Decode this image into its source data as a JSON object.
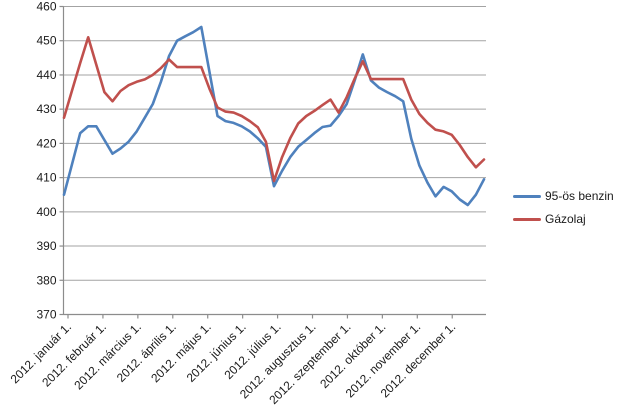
{
  "chart_data": {
    "type": "line",
    "title": "",
    "xlabel": "",
    "ylabel": "",
    "ylim": [
      370,
      460
    ],
    "y_ticks": [
      370,
      380,
      390,
      400,
      410,
      420,
      430,
      440,
      450,
      460
    ],
    "x_tick_labels": [
      "2012. január 1.",
      "2012. február 1.",
      "2012. március 1.",
      "2012. április 1.",
      "2012. május 1.",
      "2012. június 1.",
      "2012. július 1.",
      "2012. augusztus 1.",
      "2012. szeptember 1.",
      "2012. október 1.",
      "2012. november 1.",
      "2012. december 1."
    ],
    "x_unit": "week of 2012",
    "grid": "horizontal",
    "legend_position": "right",
    "background": "#ffffff",
    "axis_color": "#8c8c8c",
    "gridline_color": "#a3a3a3",
    "series": [
      {
        "name": "95-ös benzin",
        "color": "#4f81bd",
        "values": [
          405,
          414,
          423,
          425,
          425,
          421,
          417,
          418.5,
          420.5,
          423.5,
          427.5,
          431.5,
          438,
          445.5,
          450,
          451.3,
          452.5,
          454,
          441,
          428,
          426.5,
          426,
          425,
          423.5,
          421.5,
          419,
          407.5,
          412,
          416,
          419,
          421,
          423,
          424.8,
          425.2,
          428,
          431.5,
          438.5,
          446,
          438.4,
          436.3,
          435,
          433.8,
          432.3,
          421.3,
          413.5,
          408.5,
          404.5,
          407.3,
          406,
          403.6,
          402,
          405,
          409.5
        ]
      },
      {
        "name": "Gázolaj",
        "color": "#c0504d",
        "values": [
          427.5,
          435.5,
          443.5,
          451,
          443,
          435,
          432.3,
          435.3,
          437,
          438,
          438.7,
          440,
          442,
          444.5,
          442.3,
          442.3,
          442.3,
          442.3,
          436,
          430.5,
          429.3,
          429,
          428,
          426.5,
          424.7,
          420.5,
          409,
          416,
          421.5,
          425.8,
          428,
          429.5,
          431.2,
          432.8,
          429,
          433.5,
          439,
          444,
          438.8,
          438.8,
          438.8,
          438.8,
          438.8,
          432.8,
          428.6,
          426,
          424,
          423.5,
          422.5,
          419.5,
          416,
          413,
          415.3
        ]
      }
    ]
  }
}
